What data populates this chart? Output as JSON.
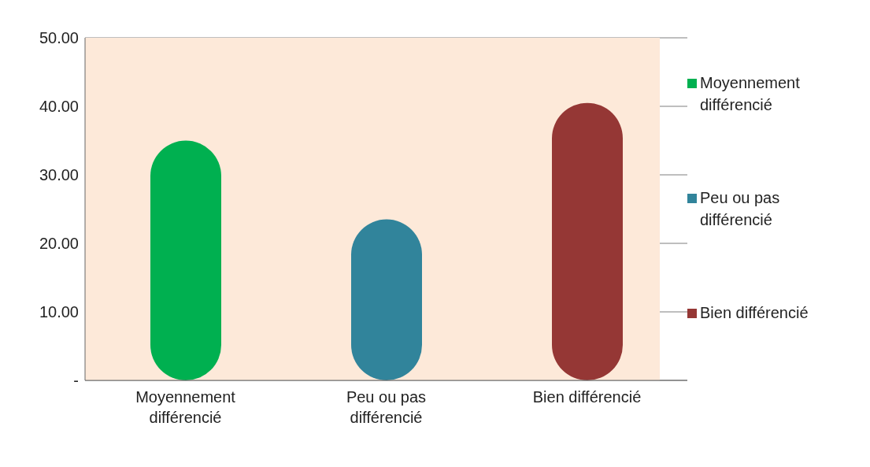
{
  "chart_data": {
    "type": "bar",
    "stacked": true,
    "categories": [
      "Moyennement différencié",
      "Peu ou pas différencié",
      "Bien différencié"
    ],
    "series": [
      {
        "name": "Moyennement différencié",
        "color": "#00b050",
        "values": [
          35,
          null,
          null
        ]
      },
      {
        "name": "Peu ou pas différencié",
        "color": "#31849b",
        "values": [
          null,
          23.5,
          null
        ]
      },
      {
        "name": "Bien différencié",
        "color": "#953735",
        "values": [
          null,
          null,
          40.5
        ]
      }
    ],
    "ylim": [
      0,
      50
    ],
    "yticks": [
      {
        "value": 0,
        "label": "-"
      },
      {
        "value": 10,
        "label": "10.00"
      },
      {
        "value": 20,
        "label": "20.00"
      },
      {
        "value": 30,
        "label": "30.00"
      },
      {
        "value": 40,
        "label": "40.00"
      },
      {
        "value": 50,
        "label": "50.00"
      }
    ],
    "grid": "y",
    "legend": "right"
  }
}
